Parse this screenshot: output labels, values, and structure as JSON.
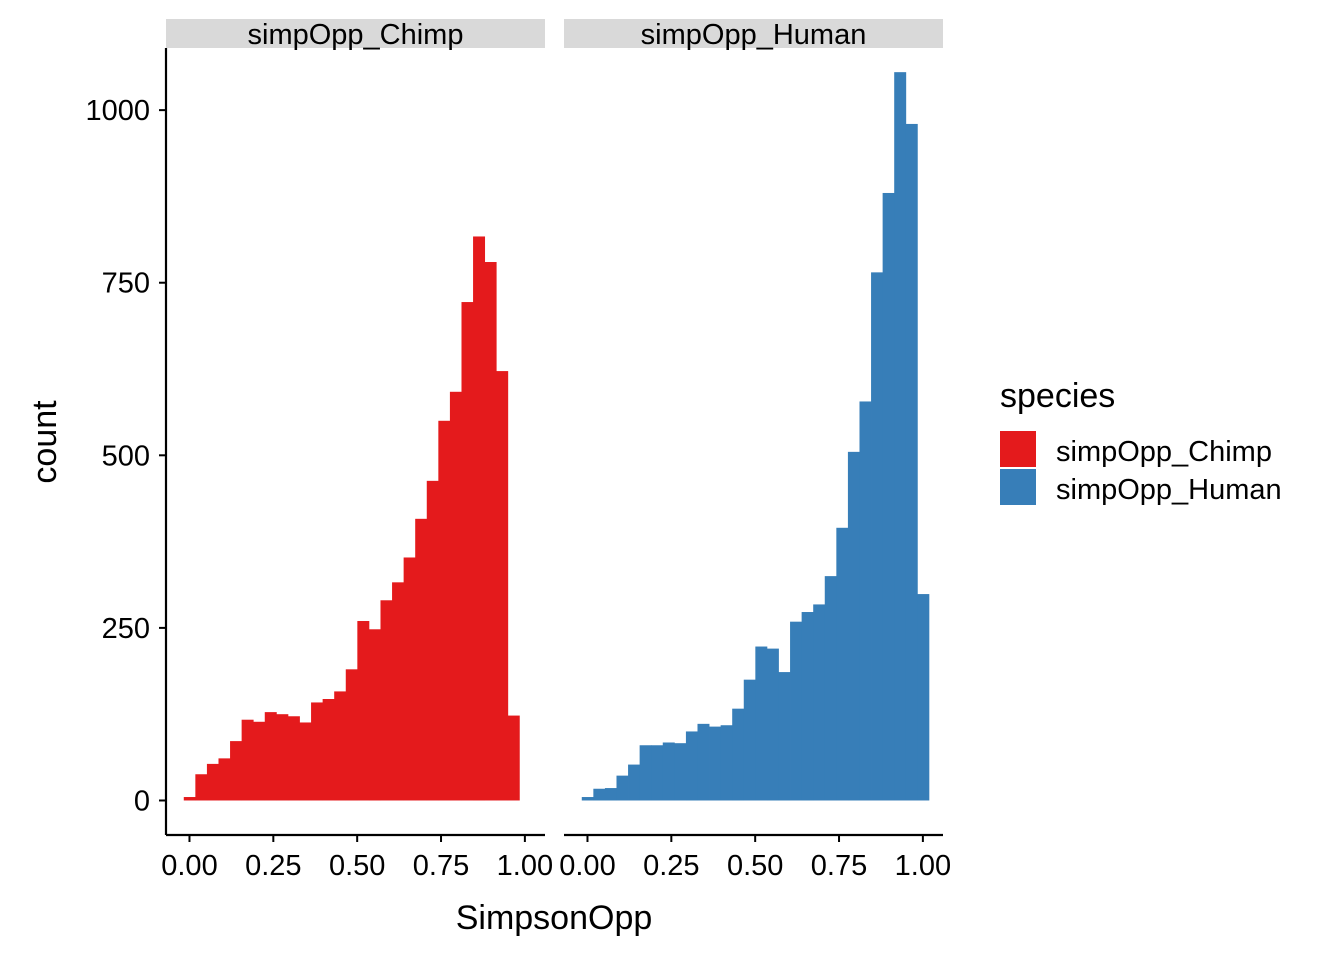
{
  "chart_data": {
    "type": "bar",
    "xlabel": "SimpsonOpp",
    "ylabel": "count",
    "ylim": [
      -50,
      1090
    ],
    "xlim": [
      -0.07,
      1.06
    ],
    "x_ticks": [
      "0.00",
      "0.25",
      "0.50",
      "0.75",
      "1.00"
    ],
    "y_ticks": [
      "0",
      "250",
      "500",
      "750",
      "1000"
    ],
    "grid": false,
    "legend": {
      "title": "species",
      "position": "right",
      "entries": [
        {
          "label": "simpOpp_Chimp",
          "color": "#E41A1C"
        },
        {
          "label": "simpOpp_Human",
          "color": "#377EB8"
        }
      ]
    },
    "bin_width": 0.0345,
    "facets": [
      {
        "strip": "simpOpp_Chimp",
        "color": "#E41A1C",
        "x_start": -0.017,
        "values": [
          5,
          38,
          53,
          61,
          86,
          117,
          114,
          128,
          125,
          122,
          113,
          142,
          147,
          158,
          190,
          260,
          248,
          290,
          316,
          352,
          408,
          463,
          550,
          592,
          722,
          817,
          780,
          622,
          123
        ]
      },
      {
        "strip": "simpOpp_Human",
        "color": "#377EB8",
        "x_start": -0.017,
        "values": [
          5,
          17,
          18,
          36,
          52,
          80,
          80,
          84,
          83,
          100,
          111,
          107,
          109,
          133,
          175,
          223,
          220,
          186,
          259,
          273,
          284,
          325,
          395,
          505,
          578,
          765,
          880,
          1055,
          980,
          299
        ]
      }
    ]
  }
}
